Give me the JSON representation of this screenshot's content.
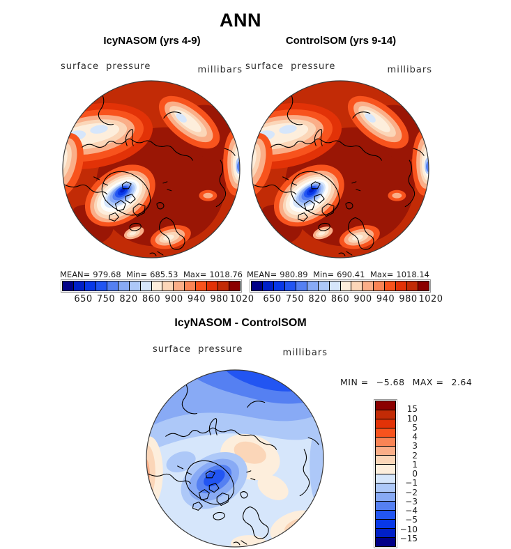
{
  "figure_title": "ANN",
  "panels": {
    "left": {
      "title": "IcyNASOM (yrs 4-9)",
      "field_label": "surface pressure",
      "units_label": "millibars",
      "stats": {
        "mean_label": "MEAN=",
        "mean": "979.68",
        "min_label": "Min=",
        "min": "685.53",
        "max_label": "Max=",
        "max": "1018.76"
      }
    },
    "right": {
      "title": "ControlSOM (yrs 9-14)",
      "field_label": "surface pressure",
      "units_label": "millibars",
      "stats": {
        "mean_label": "MEAN=",
        "mean": "980.89",
        "min_label": "Min=",
        "min": "690.41",
        "max_label": "Max=",
        "max": "1018.14"
      }
    },
    "diff": {
      "title": "IcyNASOM - ControlSOM",
      "field_label": "surface pressure",
      "units_label": "millibars",
      "stats": {
        "min_label": "MIN =",
        "min": "−5.68",
        "max_label": "MAX =",
        "max": "2.64"
      }
    }
  },
  "colorbar_pressure": {
    "orientation": "horizontal",
    "palette": [
      "#000087",
      "#0020C8",
      "#0838E8",
      "#2255F2",
      "#5580F2",
      "#88AAF5",
      "#ADC8F8",
      "#D6E6FB",
      "#FDEEDC",
      "#FBD6B8",
      "#FAAE88",
      "#F98455",
      "#F8531D",
      "#E23207",
      "#C22B06",
      "#8B0000"
    ],
    "tick_labels": [
      "650",
      "750",
      "820",
      "860",
      "900",
      "940",
      "980",
      "1020"
    ]
  },
  "colorbar_diff": {
    "orientation": "vertical",
    "palette": [
      "#8B0000",
      "#C22B06",
      "#E23207",
      "#F8531D",
      "#F98455",
      "#FAAE88",
      "#FBD6B8",
      "#FDEEDC",
      "#D6E6FB",
      "#ADC8F8",
      "#88AAF5",
      "#5580F2",
      "#2255F2",
      "#0838E8",
      "#0020C8",
      "#000087"
    ],
    "tick_labels": [
      "15",
      "10",
      "5",
      "4",
      "3",
      "2",
      "1",
      "0",
      "−1",
      "−2",
      "−3",
      "−4",
      "−5",
      "−10",
      "−15"
    ]
  },
  "chart_data": [
    {
      "type": "heatmap",
      "subtype": "polar-stereographic-contour-map",
      "title": "IcyNASOM (yrs 4-9)",
      "variable": "surface pressure",
      "units": "millibars",
      "stats": {
        "mean": 979.68,
        "min": 685.53,
        "max": 1018.76
      },
      "colorbar_ticks": [
        650,
        750,
        820,
        860,
        900,
        940,
        980,
        1020
      ],
      "palette_low_to_high": [
        "#000087",
        "#0020C8",
        "#0838E8",
        "#2255F2",
        "#5580F2",
        "#88AAF5",
        "#ADC8F8",
        "#D6E6FB",
        "#FDEEDC",
        "#FBD6B8",
        "#FAAE88",
        "#F98455",
        "#F8531D",
        "#E23207",
        "#C22B06",
        "#8B0000"
      ],
      "notes": "Arctic view; high pressure (dark red) over most of the polar cap, deep low values (blue) over Greenland, light bands over North Pacific and near map edges"
    },
    {
      "type": "heatmap",
      "subtype": "polar-stereographic-contour-map",
      "title": "ControlSOM (yrs 9-14)",
      "variable": "surface pressure",
      "units": "millibars",
      "stats": {
        "mean": 980.89,
        "min": 690.41,
        "max": 1018.14
      },
      "colorbar_ticks": [
        650,
        750,
        820,
        860,
        900,
        940,
        980,
        1020
      ],
      "palette_low_to_high": [
        "#000087",
        "#0020C8",
        "#0838E8",
        "#2255F2",
        "#5580F2",
        "#88AAF5",
        "#ADC8F8",
        "#D6E6FB",
        "#FDEEDC",
        "#FBD6B8",
        "#FAAE88",
        "#F98455",
        "#F8531D",
        "#E23207",
        "#C22B06",
        "#8B0000"
      ],
      "notes": "Nearly identical spatial pattern to IcyNASOM panel"
    },
    {
      "type": "heatmap",
      "subtype": "polar-stereographic-contour-map",
      "title": "IcyNASOM - ControlSOM",
      "variable": "surface pressure difference",
      "units": "millibars",
      "stats": {
        "min": -5.68,
        "max": 2.64
      },
      "colorbar_ticks": [
        15,
        10,
        5,
        4,
        3,
        2,
        1,
        0,
        -1,
        -2,
        -3,
        -4,
        -5,
        -10,
        -15
      ],
      "palette_high_to_low": [
        "#8B0000",
        "#C22B06",
        "#E23207",
        "#F8531D",
        "#F98455",
        "#FAAE88",
        "#FBD6B8",
        "#FDEEDC",
        "#D6E6FB",
        "#ADC8F8",
        "#88AAF5",
        "#5580F2",
        "#2255F2",
        "#0838E8",
        "#0020C8",
        "#000087"
      ],
      "notes": "Mostly weak negative differences (pale blue); strongest negative over Siberian Arctic and Greenland; weak positive (pale orange) near center and map edges"
    }
  ]
}
